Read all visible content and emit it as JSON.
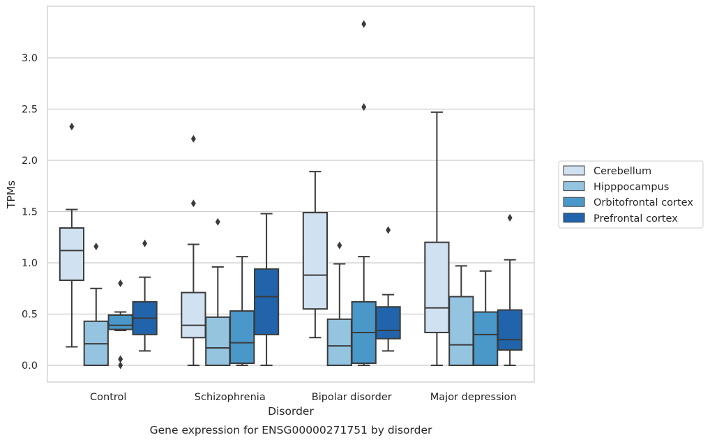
{
  "chart_data": {
    "type": "box",
    "caption": "Gene expression for ENSG00000271751 by disorder",
    "xlabel": "Disorder",
    "ylabel": "TPMs",
    "ylim": [
      -0.16,
      3.5
    ],
    "yticks": [
      "0.0",
      "0.5",
      "1.0",
      "1.5",
      "2.0",
      "2.5",
      "3.0"
    ],
    "grid": "horizontal",
    "legend_placement": "right",
    "categories": [
      "Control",
      "Schizophrenia",
      "Bipolar disorder",
      "Major depression"
    ],
    "series": [
      {
        "name": "Cerebellum",
        "color": "#d0e1f2",
        "boxes": [
          {
            "whislo": 0.18,
            "q1": 0.83,
            "med": 1.12,
            "q3": 1.34,
            "whishi": 1.52,
            "fliers": [
              2.33
            ]
          },
          {
            "whislo": 0.0,
            "q1": 0.27,
            "med": 0.39,
            "q3": 0.71,
            "whishi": 1.18,
            "fliers": [
              1.58,
              2.21
            ]
          },
          {
            "whislo": 0.27,
            "q1": 0.55,
            "med": 0.88,
            "q3": 1.49,
            "whishi": 1.89,
            "fliers": []
          },
          {
            "whislo": 0.0,
            "q1": 0.32,
            "med": 0.56,
            "q3": 1.2,
            "whishi": 2.47,
            "fliers": []
          }
        ]
      },
      {
        "name": "Hipppocampus",
        "color": "#94c4df",
        "boxes": [
          {
            "whislo": 0.0,
            "q1": 0.0,
            "med": 0.21,
            "q3": 0.43,
            "whishi": 0.75,
            "fliers": [
              1.16
            ]
          },
          {
            "whislo": 0.0,
            "q1": 0.0,
            "med": 0.17,
            "q3": 0.47,
            "whishi": 0.96,
            "fliers": [
              1.4
            ]
          },
          {
            "whislo": 0.0,
            "q1": 0.0,
            "med": 0.19,
            "q3": 0.45,
            "whishi": 0.99,
            "fliers": [
              1.17
            ]
          },
          {
            "whislo": 0.0,
            "q1": 0.0,
            "med": 0.2,
            "q3": 0.67,
            "whishi": 0.97,
            "fliers": []
          }
        ]
      },
      {
        "name": "Orbitofrontal cortex",
        "color": "#4a98c9",
        "boxes": [
          {
            "whislo": 0.34,
            "q1": 0.35,
            "med": 0.39,
            "q3": 0.49,
            "whishi": 0.52,
            "fliers": [
              0.8,
              0.06,
              0.0
            ]
          },
          {
            "whislo": 0.0,
            "q1": 0.02,
            "med": 0.22,
            "q3": 0.53,
            "whishi": 1.06,
            "fliers": []
          },
          {
            "whislo": 0.0,
            "q1": 0.02,
            "med": 0.32,
            "q3": 0.62,
            "whishi": 1.06,
            "fliers": [
              3.33,
              2.52
            ]
          },
          {
            "whislo": 0.0,
            "q1": 0.0,
            "med": 0.3,
            "q3": 0.52,
            "whishi": 0.92,
            "fliers": []
          }
        ]
      },
      {
        "name": "Prefrontal cortex",
        "color": "#2164ab",
        "boxes": [
          {
            "whislo": 0.14,
            "q1": 0.3,
            "med": 0.46,
            "q3": 0.62,
            "whishi": 0.86,
            "fliers": [
              1.19
            ]
          },
          {
            "whislo": 0.0,
            "q1": 0.3,
            "med": 0.67,
            "q3": 0.94,
            "whishi": 1.48,
            "fliers": []
          },
          {
            "whislo": 0.14,
            "q1": 0.26,
            "med": 0.34,
            "q3": 0.57,
            "whishi": 0.69,
            "fliers": [
              1.32
            ]
          },
          {
            "whislo": 0.0,
            "q1": 0.15,
            "med": 0.25,
            "q3": 0.54,
            "whishi": 1.03,
            "fliers": [
              1.44
            ]
          }
        ]
      }
    ]
  }
}
